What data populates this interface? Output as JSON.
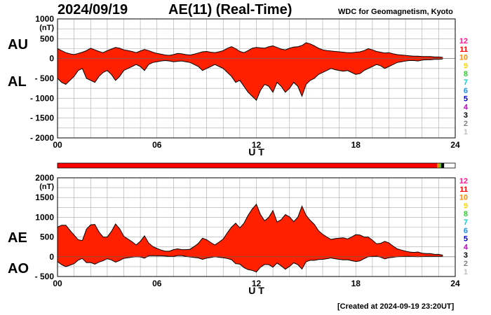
{
  "header": {
    "date": "2024/09/19",
    "title": "AE(11) (Real-Time)",
    "organization": "WDC for Geomagnetism, Kyoto",
    "created": "[Created at 2024-09-19 23:20UT]"
  },
  "colors": {
    "fill": "#ff2000",
    "outline": "#000000",
    "grid": "#aaaaaa",
    "station_counts": {
      "12": "#ff1493",
      "11": "#ff0000",
      "10": "#ff8c00",
      "9": "#ffd700",
      "8": "#32cd32",
      "7": "#00ced1",
      "6": "#1e90ff",
      "5": "#0000cd",
      "4": "#cc00cc",
      "3": "#000000",
      "2": "#808080",
      "1": "#c0c0c0"
    }
  },
  "station_scale": [
    "12",
    "11",
    "10",
    "9",
    "8",
    "7",
    "6",
    "5",
    "4",
    "3",
    "2",
    "1"
  ],
  "station_bar": {
    "segments": [
      {
        "from": 0,
        "to": 22.9,
        "count": "11"
      },
      {
        "from": 22.9,
        "to": 23.05,
        "count": "10"
      },
      {
        "from": 23.05,
        "to": 23.15,
        "count": "8"
      },
      {
        "from": 23.15,
        "to": 23.33,
        "count": "3"
      }
    ]
  },
  "chart_data": [
    {
      "type": "area",
      "upper_label": "AU",
      "lower_label": "AL",
      "ylabel": "(nT)",
      "xlabel": "U T",
      "ylim": [
        -2000,
        1000
      ],
      "yticks": [
        "1000",
        "500",
        "0",
        "- 500",
        "- 1000",
        "- 1500",
        "- 2000"
      ],
      "ytick_values": [
        1000,
        500,
        0,
        -500,
        -1000,
        -1500,
        -2000
      ],
      "xlim": [
        0,
        24
      ],
      "xticks": [
        "00",
        "06",
        "12",
        "18",
        "24"
      ],
      "xtick_values": [
        0,
        6,
        12,
        18,
        24
      ],
      "grid": true,
      "x": [
        0,
        0.25,
        0.5,
        0.75,
        1,
        1.25,
        1.5,
        1.75,
        2,
        2.25,
        2.5,
        2.75,
        3,
        3.25,
        3.5,
        3.75,
        4,
        4.25,
        4.5,
        4.75,
        5,
        5.25,
        5.5,
        5.75,
        6,
        6.25,
        6.5,
        6.75,
        7,
        7.25,
        7.5,
        7.75,
        8,
        8.25,
        8.5,
        8.75,
        9,
        9.25,
        9.5,
        9.75,
        10,
        10.25,
        10.5,
        10.75,
        11,
        11.25,
        11.5,
        11.75,
        12,
        12.25,
        12.5,
        12.75,
        13,
        13.25,
        13.5,
        13.75,
        14,
        14.25,
        14.5,
        14.75,
        15,
        15.25,
        15.5,
        15.75,
        16,
        16.25,
        16.5,
        16.75,
        17,
        17.25,
        17.5,
        17.75,
        18,
        18.25,
        18.5,
        18.75,
        19,
        19.25,
        19.5,
        19.75,
        20,
        20.25,
        20.5,
        20.75,
        21,
        21.25,
        21.5,
        21.75,
        22,
        22.25,
        22.5,
        22.75,
        23,
        23.25
      ],
      "series": [
        {
          "name": "AU",
          "values": [
            250,
            200,
            150,
            120,
            100,
            130,
            160,
            200,
            260,
            220,
            180,
            150,
            200,
            240,
            280,
            260,
            220,
            200,
            180,
            150,
            190,
            230,
            200,
            160,
            130,
            110,
            90,
            80,
            100,
            130,
            120,
            100,
            90,
            110,
            140,
            170,
            180,
            160,
            150,
            170,
            200,
            260,
            300,
            250,
            180,
            150,
            200,
            260,
            280,
            270,
            260,
            300,
            320,
            280,
            240,
            220,
            260,
            290,
            300,
            330,
            400,
            370,
            320,
            260,
            220,
            200,
            190,
            180,
            170,
            160,
            150,
            150,
            160,
            170,
            200,
            250,
            220,
            180,
            160,
            140,
            150,
            120,
            100,
            90,
            80,
            70,
            60,
            60,
            50,
            50,
            50,
            40,
            40,
            30
          ]
        },
        {
          "name": "AL",
          "values": [
            -500,
            -600,
            -650,
            -550,
            -450,
            -300,
            -250,
            -500,
            -550,
            -600,
            -450,
            -350,
            -300,
            -400,
            -550,
            -450,
            -300,
            -250,
            -200,
            -150,
            -200,
            -300,
            -150,
            -100,
            -80,
            -60,
            -50,
            -60,
            -80,
            -70,
            -60,
            -80,
            -100,
            -150,
            -200,
            -300,
            -250,
            -200,
            -150,
            -200,
            -250,
            -350,
            -450,
            -600,
            -550,
            -700,
            -850,
            -950,
            -1050,
            -800,
            -650,
            -700,
            -850,
            -600,
            -700,
            -850,
            -750,
            -600,
            -700,
            -950,
            -650,
            -550,
            -500,
            -400,
            -350,
            -300,
            -250,
            -280,
            -300,
            -320,
            -300,
            -350,
            -400,
            -380,
            -300,
            -250,
            -200,
            -150,
            -180,
            -250,
            -200,
            -150,
            -100,
            -80,
            -60,
            -50,
            -50,
            -60,
            -40,
            -30,
            -30,
            -20,
            -20,
            -10
          ]
        }
      ]
    },
    {
      "type": "area",
      "upper_label": "AE",
      "lower_label": "AO",
      "ylabel": "(nT)",
      "xlabel": "U T",
      "ylim": [
        -500,
        2000
      ],
      "yticks": [
        "2000",
        "1500",
        "1000",
        "500",
        "0",
        "- 500"
      ],
      "ytick_values": [
        2000,
        1500,
        1000,
        500,
        0,
        -500
      ],
      "xlim": [
        0,
        24
      ],
      "xticks": [
        "00",
        "06",
        "12",
        "18",
        "24"
      ],
      "xtick_values": [
        0,
        6,
        12,
        18,
        24
      ],
      "grid": true,
      "x": [
        0,
        0.25,
        0.5,
        0.75,
        1,
        1.25,
        1.5,
        1.75,
        2,
        2.25,
        2.5,
        2.75,
        3,
        3.25,
        3.5,
        3.75,
        4,
        4.25,
        4.5,
        4.75,
        5,
        5.25,
        5.5,
        5.75,
        6,
        6.25,
        6.5,
        6.75,
        7,
        7.25,
        7.5,
        7.75,
        8,
        8.25,
        8.5,
        8.75,
        9,
        9.25,
        9.5,
        9.75,
        10,
        10.25,
        10.5,
        10.75,
        11,
        11.25,
        11.5,
        11.75,
        12,
        12.25,
        12.5,
        12.75,
        13,
        13.25,
        13.5,
        13.75,
        14,
        14.25,
        14.5,
        14.75,
        15,
        15.25,
        15.5,
        15.75,
        16,
        16.25,
        16.5,
        16.75,
        17,
        17.25,
        17.5,
        17.75,
        18,
        18.25,
        18.5,
        18.75,
        19,
        19.25,
        19.5,
        19.75,
        20,
        20.25,
        20.5,
        20.75,
        21,
        21.25,
        21.5,
        21.75,
        22,
        22.25,
        22.5,
        22.75,
        23,
        23.25
      ],
      "series": [
        {
          "name": "AE",
          "values": [
            750,
            800,
            800,
            670,
            550,
            430,
            410,
            700,
            810,
            820,
            630,
            500,
            500,
            640,
            830,
            710,
            520,
            450,
            380,
            300,
            390,
            530,
            350,
            260,
            210,
            170,
            140,
            140,
            180,
            200,
            180,
            180,
            190,
            260,
            340,
            470,
            430,
            360,
            300,
            370,
            450,
            610,
            750,
            850,
            730,
            850,
            1050,
            1210,
            1330,
            1070,
            910,
            1000,
            1170,
            880,
            940,
            1070,
            1010,
            890,
            1000,
            1280,
            1050,
            920,
            820,
            660,
            570,
            500,
            440,
            460,
            470,
            480,
            450,
            500,
            560,
            550,
            500,
            500,
            420,
            330,
            340,
            390,
            350,
            270,
            200,
            170,
            140,
            120,
            110,
            120,
            90,
            80,
            80,
            60,
            60,
            40
          ]
        },
        {
          "name": "AO",
          "values": [
            -125,
            -200,
            -250,
            -215,
            -175,
            -85,
            -45,
            -150,
            -145,
            -190,
            -135,
            -100,
            -50,
            -80,
            -135,
            -95,
            -40,
            -25,
            -10,
            0,
            -5,
            -35,
            25,
            30,
            25,
            25,
            20,
            10,
            10,
            30,
            30,
            10,
            -5,
            -20,
            -30,
            -65,
            -35,
            -20,
            0,
            -15,
            -25,
            -45,
            -75,
            -175,
            -185,
            -275,
            -325,
            -345,
            -385,
            -265,
            -195,
            -200,
            -265,
            -160,
            -230,
            -315,
            -245,
            -155,
            -200,
            -310,
            -125,
            -90,
            -90,
            -70,
            -65,
            -50,
            -30,
            -50,
            -65,
            -80,
            -75,
            -100,
            -120,
            -105,
            -50,
            0,
            10,
            15,
            -10,
            -55,
            -25,
            -15,
            0,
            5,
            10,
            10,
            5,
            0,
            5,
            10,
            10,
            10,
            10,
            10
          ]
        }
      ]
    }
  ]
}
